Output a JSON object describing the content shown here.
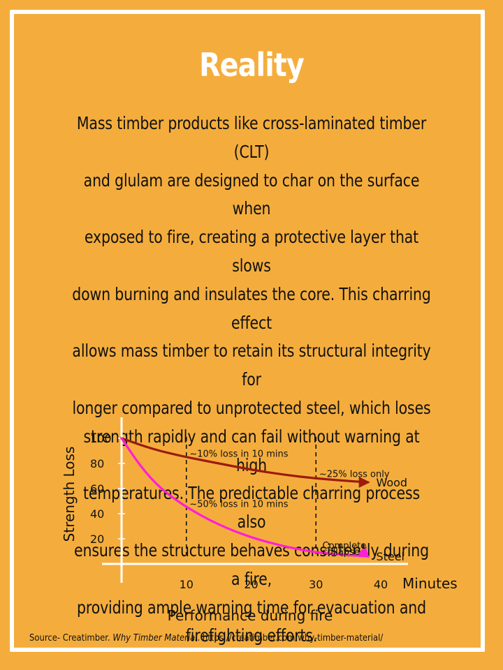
{
  "page": {
    "title": "Reality",
    "body_lines": [
      "Mass timber products like cross-laminated timber (CLT)",
      "and glulam are designed to char on the surface when",
      "exposed to fire, creating a protective layer that slows",
      "down burning and insulates the core. This charring effect",
      "allows mass timber to retain its structural integrity for",
      "longer compared to unprotected steel, which loses",
      "strength rapidly and can fail without warning at high",
      "temperatures. The predictable charring process also",
      "ensures the structure behaves consistently during a fire,",
      "providing ample warning time for evacuation and",
      "firefighting efforts."
    ],
    "source_prefix": "Source- Creatimber. ",
    "source_title": "Why Timber Material",
    "source_url": ". https://creatimber.com/why-timber-material/"
  },
  "colors": {
    "background": "#f4ad3d",
    "wood": "#9b1b0e",
    "steel": "#ff1fd6"
  },
  "chart_data": {
    "type": "line",
    "xlabel": "Performance during fire",
    "x_unit_label": "Minutes",
    "ylabel": "Strength Loss",
    "xlim": [
      0,
      40
    ],
    "ylim": [
      0,
      100
    ],
    "x_ticks": [
      10,
      20,
      30,
      40
    ],
    "y_ticks": [
      20,
      40,
      60,
      80,
      100
    ],
    "series": [
      {
        "name": "Wood",
        "x": [
          0,
          5,
          10,
          15,
          20,
          25,
          30,
          35,
          38
        ],
        "y": [
          100,
          91,
          85,
          80,
          75,
          71,
          68,
          66,
          65
        ]
      },
      {
        "name": "Steel",
        "x": [
          0,
          3,
          6,
          10,
          15,
          20,
          25,
          30,
          35,
          38
        ],
        "y": [
          100,
          77,
          60,
          45,
          31,
          21,
          14,
          9,
          7,
          6
        ]
      }
    ],
    "reference_lines_x": [
      10,
      30
    ],
    "annotations": [
      {
        "text": "~10% loss in 10 mins",
        "x": 10.5,
        "y": 88
      },
      {
        "text": "~50% loss in 10 mins",
        "x": 10.5,
        "y": 48
      },
      {
        "text": "~25% loss only",
        "x": 30.5,
        "y": 72
      },
      {
        "text": "Complete",
        "x": 31,
        "y": 15
      },
      {
        "text": "collapse",
        "x": 31,
        "y": 10
      }
    ]
  }
}
